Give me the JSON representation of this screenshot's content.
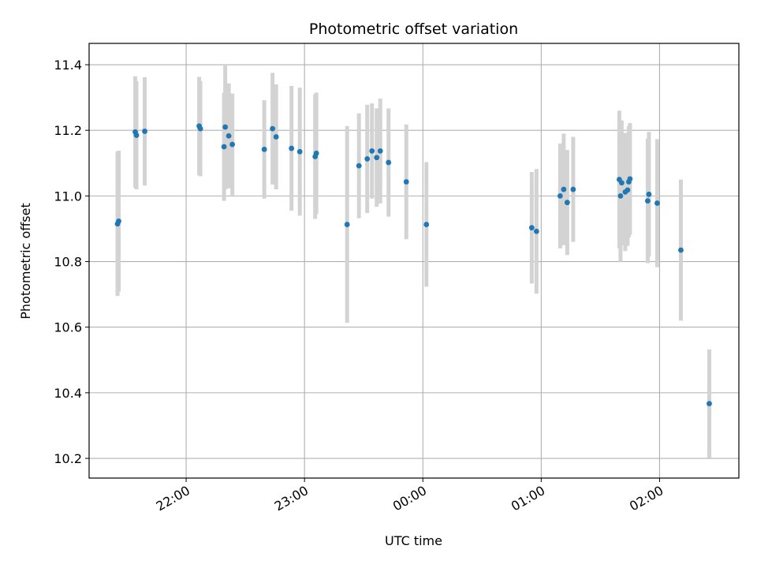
{
  "chart_data": {
    "type": "scatter",
    "title": "Photometric offset variation",
    "xlabel": "UTC time",
    "ylabel": "Photometric offset",
    "x_unit": "time of day (UTC), hours past 22:00 on the first night",
    "xlim": [
      -0.82,
      4.67
    ],
    "ylim": [
      10.14,
      11.465
    ],
    "xticks": [
      {
        "value": 0,
        "label": "22:00"
      },
      {
        "value": 1,
        "label": "23:00"
      },
      {
        "value": 2,
        "label": "00:00"
      },
      {
        "value": 3,
        "label": "01:00"
      },
      {
        "value": 4,
        "label": "02:00"
      }
    ],
    "yticks": [
      {
        "value": 10.2,
        "label": "10.2"
      },
      {
        "value": 10.4,
        "label": "10.4"
      },
      {
        "value": 10.6,
        "label": "10.6"
      },
      {
        "value": 10.8,
        "label": "10.8"
      },
      {
        "value": 11.0,
        "label": "11.0"
      },
      {
        "value": 11.2,
        "label": "11.2"
      },
      {
        "value": 11.4,
        "label": "11.4"
      }
    ],
    "grid": true,
    "marker_color": "#1f77b4",
    "errorbar_color": "#d3d3d3",
    "points": [
      {
        "x": -0.58,
        "y": 10.915,
        "err": 0.22
      },
      {
        "x": -0.57,
        "y": 10.923,
        "err": 0.215
      },
      {
        "x": -0.43,
        "y": 11.195,
        "err": 0.17
      },
      {
        "x": -0.42,
        "y": 11.185,
        "err": 0.165
      },
      {
        "x": -0.35,
        "y": 11.197,
        "err": 0.165
      },
      {
        "x": 0.11,
        "y": 11.213,
        "err": 0.15
      },
      {
        "x": 0.12,
        "y": 11.205,
        "err": 0.145
      },
      {
        "x": 0.32,
        "y": 11.15,
        "err": 0.165
      },
      {
        "x": 0.33,
        "y": 11.21,
        "err": 0.19
      },
      {
        "x": 0.36,
        "y": 11.183,
        "err": 0.16
      },
      {
        "x": 0.39,
        "y": 11.157,
        "err": 0.155
      },
      {
        "x": 0.66,
        "y": 11.142,
        "err": 0.15
      },
      {
        "x": 0.73,
        "y": 11.205,
        "err": 0.17
      },
      {
        "x": 0.76,
        "y": 11.18,
        "err": 0.16
      },
      {
        "x": 0.89,
        "y": 11.145,
        "err": 0.19
      },
      {
        "x": 0.96,
        "y": 11.135,
        "err": 0.195
      },
      {
        "x": 1.09,
        "y": 11.12,
        "err": 0.19
      },
      {
        "x": 1.1,
        "y": 11.13,
        "err": 0.185
      },
      {
        "x": 1.36,
        "y": 10.913,
        "err": 0.3
      },
      {
        "x": 1.46,
        "y": 11.092,
        "err": 0.16
      },
      {
        "x": 1.53,
        "y": 11.113,
        "err": 0.165
      },
      {
        "x": 1.57,
        "y": 11.137,
        "err": 0.145
      },
      {
        "x": 1.61,
        "y": 11.117,
        "err": 0.15
      },
      {
        "x": 1.64,
        "y": 11.137,
        "err": 0.16
      },
      {
        "x": 1.71,
        "y": 11.102,
        "err": 0.165
      },
      {
        "x": 1.86,
        "y": 11.043,
        "err": 0.175
      },
      {
        "x": 2.03,
        "y": 10.913,
        "err": 0.19
      },
      {
        "x": 2.92,
        "y": 10.903,
        "err": 0.17
      },
      {
        "x": 2.96,
        "y": 10.892,
        "err": 0.19
      },
      {
        "x": 3.16,
        "y": 11.0,
        "err": 0.16
      },
      {
        "x": 3.19,
        "y": 11.02,
        "err": 0.17
      },
      {
        "x": 3.22,
        "y": 10.98,
        "err": 0.16
      },
      {
        "x": 3.27,
        "y": 11.02,
        "err": 0.16
      },
      {
        "x": 3.66,
        "y": 11.05,
        "err": 0.21
      },
      {
        "x": 3.67,
        "y": 11.0,
        "err": 0.2
      },
      {
        "x": 3.68,
        "y": 11.04,
        "err": 0.19
      },
      {
        "x": 3.71,
        "y": 11.012,
        "err": 0.18
      },
      {
        "x": 3.73,
        "y": 11.018,
        "err": 0.17
      },
      {
        "x": 3.74,
        "y": 11.043,
        "err": 0.17
      },
      {
        "x": 3.75,
        "y": 11.052,
        "err": 0.17
      },
      {
        "x": 3.9,
        "y": 10.985,
        "err": 0.19
      },
      {
        "x": 3.91,
        "y": 11.005,
        "err": 0.19
      },
      {
        "x": 3.98,
        "y": 10.978,
        "err": 0.195
      },
      {
        "x": 4.18,
        "y": 10.835,
        "err": 0.215
      },
      {
        "x": 4.42,
        "y": 10.367,
        "err": 0.165
      }
    ]
  }
}
